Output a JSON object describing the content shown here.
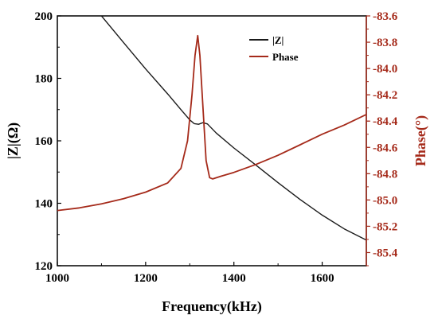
{
  "chart_data": {
    "type": "line",
    "xlabel": "Frequency(kHz)",
    "ylabel": "|Z|(Ω)",
    "ylabel_right": "Phase(°)",
    "xlim": [
      1000,
      1700
    ],
    "ylim": [
      120,
      200
    ],
    "ylim_right": [
      -85.5,
      -83.6
    ],
    "x_ticks": [
      "1000",
      "1200",
      "1400",
      "1600"
    ],
    "y_ticks": [
      "120",
      "140",
      "160",
      "180",
      "200"
    ],
    "y_ticks_right": [
      "-83.6",
      "-83.8",
      "-84.0",
      "-84.2",
      "-84.4",
      "-84.6",
      "-84.8",
      "-85.0",
      "-85.2",
      "-85.4"
    ],
    "legend_position": "top-right",
    "colors": {
      "impedance": "#1a1a1a",
      "phase": "#a52a1a",
      "right_axis": "#a52a1a"
    },
    "series": [
      {
        "name": "|Z|",
        "axis": "left",
        "x": [
          1100,
          1150,
          1200,
          1250,
          1280,
          1300,
          1310,
          1320,
          1330,
          1340,
          1360,
          1400,
          1450,
          1500,
          1550,
          1600,
          1650,
          1700
        ],
        "y": [
          200,
          191.5,
          183,
          175,
          170,
          166.7,
          165.5,
          165.3,
          165.8,
          165.4,
          162.5,
          157.7,
          152.2,
          146.6,
          141.2,
          136.2,
          131.8,
          128.2
        ]
      },
      {
        "name": "Phase",
        "axis": "right",
        "x": [
          1000,
          1050,
          1100,
          1150,
          1200,
          1250,
          1280,
          1295,
          1305,
          1312,
          1318,
          1323,
          1330,
          1337,
          1345,
          1352,
          1370,
          1400,
          1450,
          1500,
          1550,
          1600,
          1650,
          1700
        ],
        "y": [
          -85.08,
          -85.06,
          -85.03,
          -84.99,
          -84.94,
          -84.87,
          -84.76,
          -84.55,
          -84.2,
          -83.9,
          -83.75,
          -83.9,
          -84.3,
          -84.7,
          -84.83,
          -84.84,
          -84.82,
          -84.79,
          -84.73,
          -84.66,
          -84.58,
          -84.5,
          -84.43,
          -84.35
        ]
      }
    ]
  }
}
